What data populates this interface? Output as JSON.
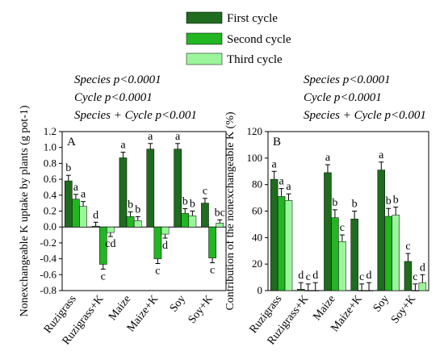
{
  "legend": [
    {
      "name": "First cycle",
      "color": "#1f6b1f"
    },
    {
      "name": "Second cycle",
      "color": "#22b622"
    },
    {
      "name": "Third cycle",
      "color": "#9bf59b"
    }
  ],
  "chart_data": [
    {
      "type": "bar",
      "panel_label": "A",
      "ylabel": "Nonexchangeable K uptake by  plants (g pot-1)",
      "ylim": [
        -0.8,
        1.2
      ],
      "yticks": [
        "-0.8",
        "-0.6",
        "-0.4",
        "-0.2",
        "0.0",
        "0.2",
        "0.4",
        "0.6",
        "0.8",
        "1.0",
        "1.2"
      ],
      "stats": [
        "Species  p<0.0001",
        "Cycle p<0.0001",
        "Species + Cycle p<0.001"
      ],
      "categories": [
        "Ruzigrass",
        "Ruzigrass+K",
        "Maize",
        "Maize+K",
        "Soy",
        "Soy+K"
      ],
      "series": [
        {
          "name": "First cycle",
          "values": [
            0.58,
            0.01,
            0.87,
            0.98,
            0.98,
            0.3
          ],
          "errors": [
            0.07,
            0.05,
            0.07,
            0.07,
            0.07,
            0.06
          ],
          "letters": [
            "b",
            "d",
            "a",
            "a",
            "a",
            "c"
          ]
        },
        {
          "name": "Second cycle",
          "values": [
            0.35,
            -0.47,
            0.13,
            -0.4,
            0.17,
            -0.39
          ],
          "errors": [
            0.06,
            0.06,
            0.06,
            0.06,
            0.06,
            0.06
          ],
          "letters": [
            "a",
            "c",
            "b",
            "c",
            "b",
            "c"
          ]
        },
        {
          "name": "Third cycle",
          "values": [
            0.26,
            -0.07,
            0.08,
            -0.09,
            0.14,
            0.05
          ],
          "errors": [
            0.06,
            0.05,
            0.05,
            0.05,
            0.06,
            0.04
          ],
          "letters": [
            "a",
            "cd",
            "b",
            "d",
            "b",
            "bc"
          ]
        }
      ]
    },
    {
      "type": "bar",
      "panel_label": "B",
      "ylabel": "Contribution of the nonexchangeable K  (%)",
      "ylim": [
        0,
        120
      ],
      "yticks": [
        "0",
        "20",
        "40",
        "60",
        "80",
        "100",
        "120"
      ],
      "stats": [
        "Species  p<0.0001",
        "Cycle p<0.0001",
        "Species + Cycle p<0.001"
      ],
      "categories": [
        "Ruzigrass",
        "Ruzigrass+K",
        "Maize",
        "Maize+K",
        "Soy",
        "Soy+K"
      ],
      "series": [
        {
          "name": "First cycle",
          "values": [
            84,
            1,
            89,
            54,
            91,
            22
          ],
          "errors": [
            6,
            5,
            6,
            6,
            6,
            6
          ],
          "letters": [
            "a",
            "d",
            "a",
            "b",
            "a",
            "c"
          ]
        },
        {
          "name": "Second cycle",
          "values": [
            71,
            0,
            55,
            0,
            56,
            0
          ],
          "errors": [
            6,
            5,
            6,
            5,
            6,
            5
          ],
          "letters": [
            "a",
            "c",
            "b",
            "c",
            "b",
            "c"
          ]
        },
        {
          "name": "Third cycle",
          "values": [
            68,
            0,
            37,
            0,
            57,
            6
          ],
          "errors": [
            5,
            6,
            5,
            6,
            6,
            6
          ],
          "letters": [
            "a",
            "d",
            "c",
            "d",
            "b",
            "d"
          ]
        }
      ]
    }
  ]
}
